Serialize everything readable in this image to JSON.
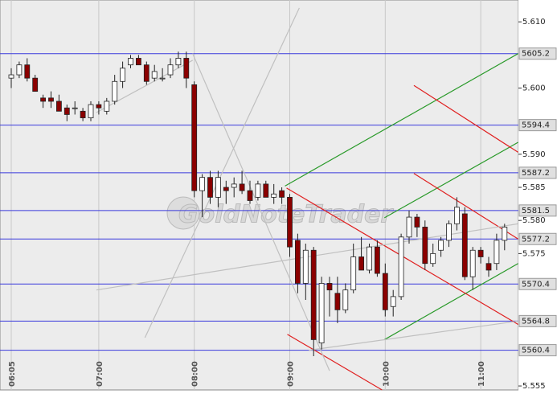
{
  "chart_data": {
    "type": "candlestick",
    "watermark": "GoldNoteTrader",
    "up_color": "#ffffff",
    "down_color": "#8b0000",
    "grid": true,
    "ylim": [
      5.5544,
      5.6133
    ],
    "yticks": [
      {
        "value": 5.61,
        "label": "5.610"
      },
      {
        "value": 5.6,
        "label": "5.600"
      },
      {
        "value": 5.59,
        "label": "5.590"
      },
      5.585,
      {
        "value": 5.58,
        "label": "5.580"
      },
      5.575,
      5.555
    ],
    "price_lines": [
      {
        "value": 5.6052,
        "label": "5605.2"
      },
      {
        "value": 5.5944,
        "label": "5594.4"
      },
      {
        "value": 5.5872,
        "label": "5587.2"
      },
      {
        "value": 5.5815,
        "label": "5581.5"
      },
      {
        "value": 5.5772,
        "label": "5577.2"
      },
      {
        "value": 5.5704,
        "label": "5570.4"
      },
      {
        "value": 5.5648,
        "label": "5564.8"
      },
      {
        "value": 5.5604,
        "label": "5560.4"
      }
    ],
    "categories": [
      "06:05",
      null,
      null,
      null,
      null,
      null,
      null,
      null,
      null,
      null,
      null,
      "07:00",
      null,
      null,
      null,
      null,
      null,
      null,
      null,
      null,
      null,
      null,
      null,
      "08:00",
      null,
      null,
      null,
      null,
      null,
      null,
      null,
      null,
      null,
      null,
      null,
      "09:00",
      null,
      null,
      null,
      null,
      null,
      null,
      null,
      null,
      null,
      null,
      null,
      "10:00",
      null,
      null,
      null,
      null,
      null,
      null,
      null,
      null,
      null,
      null,
      null,
      "11:00",
      null,
      null,
      null
    ],
    "open": [
      5.6015,
      5.602,
      5.6035,
      5.6015,
      5.5985,
      5.5985,
      5.598,
      5.597,
      5.597,
      5.5965,
      5.5955,
      5.5975,
      5.5965,
      5.598,
      5.601,
      5.6035,
      5.6045,
      5.6035,
      5.6015,
      5.6015,
      5.602,
      5.6035,
      5.6045,
      5.6005,
      5.5845,
      5.5865,
      5.5835,
      5.585,
      5.585,
      5.5855,
      5.5845,
      5.5835,
      5.5855,
      5.5835,
      5.5845,
      5.5835,
      5.577,
      5.5705,
      5.5755,
      5.5615,
      5.5705,
      5.569,
      5.5665,
      5.5695,
      5.5745,
      5.5725,
      5.576,
      5.572,
      5.567,
      5.5685,
      5.5775,
      5.5805,
      5.579,
      5.5735,
      5.5755,
      5.577,
      5.5795,
      5.581,
      5.5715,
      5.5755,
      5.5735,
      5.5735,
      5.577
    ],
    "high": [
      5.603,
      5.604,
      5.6045,
      5.602,
      5.599,
      5.5995,
      5.599,
      5.5975,
      5.598,
      5.597,
      5.598,
      5.598,
      5.5985,
      5.602,
      5.604,
      5.605,
      5.605,
      5.604,
      5.6035,
      5.603,
      5.6045,
      5.6055,
      5.6055,
      5.601,
      5.587,
      5.5875,
      5.5875,
      5.586,
      5.5865,
      5.5875,
      5.586,
      5.586,
      5.586,
      5.5855,
      5.585,
      5.584,
      5.578,
      5.5765,
      5.576,
      5.5715,
      5.5715,
      5.5715,
      5.5705,
      5.5765,
      5.5775,
      5.5765,
      5.577,
      5.5735,
      5.5695,
      5.578,
      5.5815,
      5.581,
      5.58,
      5.5765,
      5.5775,
      5.58,
      5.5835,
      5.582,
      5.576,
      5.576,
      5.5745,
      5.578,
      5.5795
    ],
    "low": [
      5.6,
      5.6015,
      5.601,
      5.5995,
      5.597,
      5.597,
      5.5965,
      5.595,
      5.596,
      5.595,
      5.595,
      5.596,
      5.596,
      5.5975,
      5.6,
      5.603,
      5.6035,
      5.6005,
      5.601,
      5.601,
      5.6015,
      5.603,
      5.6,
      5.5835,
      5.5805,
      5.5825,
      5.582,
      5.5825,
      5.5835,
      5.584,
      5.5825,
      5.583,
      5.5835,
      5.5825,
      5.5825,
      5.5745,
      5.569,
      5.568,
      5.5595,
      5.5605,
      5.5655,
      5.5645,
      5.566,
      5.569,
      5.5725,
      5.572,
      5.5715,
      5.5655,
      5.5655,
      5.568,
      5.5765,
      5.5775,
      5.5725,
      5.573,
      5.5745,
      5.576,
      5.5785,
      5.571,
      5.5695,
      5.5735,
      5.5715,
      5.5725,
      5.5755
    ],
    "close": [
      5.602,
      5.6035,
      5.6015,
      5.5995,
      5.598,
      5.598,
      5.5965,
      5.596,
      5.597,
      5.5955,
      5.5975,
      5.597,
      5.598,
      5.601,
      5.603,
      5.6045,
      5.6035,
      5.601,
      5.6025,
      5.6015,
      5.6035,
      5.6045,
      5.6015,
      5.5845,
      5.5865,
      5.5835,
      5.5865,
      5.5845,
      5.5855,
      5.5845,
      5.583,
      5.5855,
      5.5835,
      5.584,
      5.5835,
      5.576,
      5.5705,
      5.5755,
      5.562,
      5.5705,
      5.5695,
      5.5665,
      5.5695,
      5.5745,
      5.5725,
      5.576,
      5.572,
      5.5665,
      5.5685,
      5.5775,
      5.5805,
      5.579,
      5.5735,
      5.575,
      5.577,
      5.5795,
      5.582,
      5.5715,
      5.5755,
      5.5745,
      5.5725,
      5.577,
      5.579
    ],
    "lines": [
      {
        "color": "#2a9a2a",
        "x": [
          34.4,
          63.7
        ],
        "y": [
          5.5852,
          5.6052
        ]
      },
      {
        "color": "#2a9a2a",
        "x": [
          46.9,
          63.7
        ],
        "y": [
          5.5804,
          5.5918
        ]
      },
      {
        "color": "#2a9a2a",
        "x": [
          46.9,
          63.7
        ],
        "y": [
          5.562,
          5.5735
        ]
      },
      {
        "color": "#e02020",
        "x": [
          34.6,
          63.7
        ],
        "y": [
          5.5849,
          5.5643
        ]
      },
      {
        "color": "#e02020",
        "x": [
          50.6,
          63.7
        ],
        "y": [
          5.6004,
          5.5903
        ]
      },
      {
        "color": "#e02020",
        "x": [
          50.6,
          63.7
        ],
        "y": [
          5.5871,
          5.5772
        ]
      },
      {
        "color": "#e02020",
        "x": [
          34.7,
          46.6
        ],
        "y": [
          5.5628,
          5.5544
        ]
      },
      {
        "color": "#c0c0c0",
        "x": [
          10.7,
          63.7
        ],
        "y": [
          5.5695,
          5.5795
        ]
      },
      {
        "color": "#c0c0c0",
        "x": [
          10.7,
          22.8
        ],
        "y": [
          5.5963,
          5.6042
        ]
      },
      {
        "color": "#c0c0c0",
        "x": [
          22.8,
          40.0
        ],
        "y": [
          5.6052,
          5.5573
        ]
      },
      {
        "color": "#c0c0c0",
        "x": [
          16.8,
          36.2
        ],
        "y": [
          5.5623,
          5.6121
        ]
      },
      {
        "color": "#c0c0c0",
        "x": [
          37.4,
          63.7
        ],
        "y": [
          5.5604,
          5.5648
        ]
      }
    ]
  }
}
